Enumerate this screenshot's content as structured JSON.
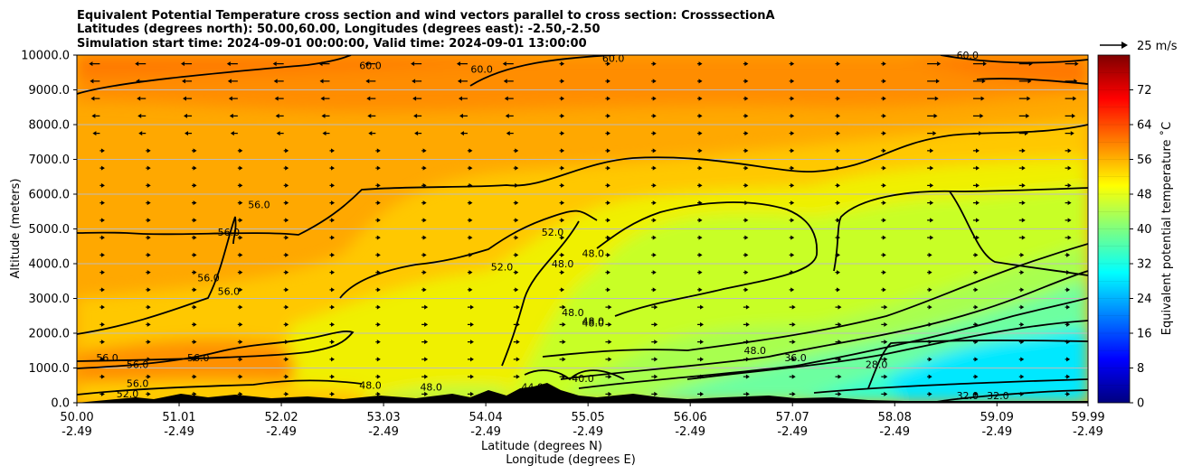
{
  "chart_data": {
    "type": "contourf",
    "title": [
      "Equivalent Potential Temperature cross section and wind vectors parallel to cross section: CrosssectionA",
      "Latitudes (degrees north): 50.00,60.00, Longitudes (degrees east): -2.50,-2.50",
      "Simulation start time: 2024-09-01 00:00:00, Valid time: 2024-09-01 13:00:00"
    ],
    "xlabel": "Latitude (degrees N)",
    "xlabel2": "Longitude (degrees E)",
    "ylabel": "Altitude (meters)",
    "xlim": [
      50.0,
      59.99
    ],
    "ylim": [
      0,
      10000
    ],
    "x_ticks": [
      {
        "lat": "50.00",
        "lon": "-2.49",
        "v": 50.0
      },
      {
        "lat": "51.01",
        "lon": "-2.49",
        "v": 51.01
      },
      {
        "lat": "52.02",
        "lon": "-2.49",
        "v": 52.02
      },
      {
        "lat": "53.03",
        "lon": "-2.49",
        "v": 53.03
      },
      {
        "lat": "54.04",
        "lon": "-2.49",
        "v": 54.04
      },
      {
        "lat": "55.05",
        "lon": "-2.49",
        "v": 55.05
      },
      {
        "lat": "56.06",
        "lon": "-2.49",
        "v": 56.06
      },
      {
        "lat": "57.07",
        "lon": "-2.49",
        "v": 57.07
      },
      {
        "lat": "58.08",
        "lon": "-2.49",
        "v": 58.08
      },
      {
        "lat": "59.09",
        "lon": "-2.49",
        "v": 59.09
      },
      {
        "lat": "59.99",
        "lon": "-2.49",
        "v": 59.99
      }
    ],
    "y_ticks": [
      {
        "label": "0.0",
        "v": 0
      },
      {
        "label": "1000.0",
        "v": 1000
      },
      {
        "label": "2000.0",
        "v": 2000
      },
      {
        "label": "3000.0",
        "v": 3000
      },
      {
        "label": "4000.0",
        "v": 4000
      },
      {
        "label": "5000.0",
        "v": 5000
      },
      {
        "label": "6000.0",
        "v": 6000
      },
      {
        "label": "7000.0",
        "v": 7000
      },
      {
        "label": "8000.0",
        "v": 8000
      },
      {
        "label": "9000.0",
        "v": 9000
      },
      {
        "label": "10000.0",
        "v": 10000
      }
    ],
    "colorbar": {
      "label": "Equivalent potential temperature $^\\circ$C",
      "label_text": "Equivalent potential temperature ˚C",
      "range": [
        0,
        80
      ],
      "ticks": [
        {
          "label": "0",
          "v": 0
        },
        {
          "label": "8",
          "v": 8
        },
        {
          "label": "16",
          "v": 16
        },
        {
          "label": "24",
          "v": 24
        },
        {
          "label": "32",
          "v": 32
        },
        {
          "label": "40",
          "v": 40
        },
        {
          "label": "48",
          "v": 48
        },
        {
          "label": "56",
          "v": 56
        },
        {
          "label": "64",
          "v": 64
        },
        {
          "label": "72",
          "v": 72
        }
      ],
      "stops": [
        "#00007f",
        "#0000ff",
        "#007fff",
        "#00ffff",
        "#7fff7f",
        "#ffff00",
        "#ff7f00",
        "#ff0000",
        "#7f0000"
      ]
    },
    "quiver_key": "25 m/s",
    "contour_labels": [
      {
        "t": "60.0",
        "x": 52.9,
        "y": 9600
      },
      {
        "t": "60.0",
        "x": 54.0,
        "y": 9500
      },
      {
        "t": "60.0",
        "x": 55.3,
        "y": 9800
      },
      {
        "t": "60.0",
        "x": 58.8,
        "y": 9900
      },
      {
        "t": "56.0",
        "x": 51.8,
        "y": 5600
      },
      {
        "t": "56.0",
        "x": 51.5,
        "y": 4800
      },
      {
        "t": "56.0",
        "x": 51.3,
        "y": 3500
      },
      {
        "t": "56.0",
        "x": 51.5,
        "y": 3100
      },
      {
        "t": "56.0",
        "x": 50.6,
        "y": 1000
      },
      {
        "t": "56.0",
        "x": 51.2,
        "y": 1200
      },
      {
        "t": "56.0",
        "x": 50.3,
        "y": 1200
      },
      {
        "t": "56.0",
        "x": 50.6,
        "y": 450
      },
      {
        "t": "52.0",
        "x": 50.5,
        "y": 150
      },
      {
        "t": "52.0",
        "x": 54.7,
        "y": 4800
      },
      {
        "t": "52.0",
        "x": 54.2,
        "y": 3800
      },
      {
        "t": "48.0",
        "x": 54.8,
        "y": 3900
      },
      {
        "t": "48.0",
        "x": 55.1,
        "y": 4200
      },
      {
        "t": "48.0",
        "x": 54.9,
        "y": 2500
      },
      {
        "t": "48.0",
        "x": 55.1,
        "y": 2250
      },
      {
        "t": "48.0",
        "x": 55.1,
        "y": 2200
      },
      {
        "t": "48.0",
        "x": 56.7,
        "y": 1400
      },
      {
        "t": "48.0",
        "x": 52.9,
        "y": 400
      },
      {
        "t": "48.0",
        "x": 53.5,
        "y": 350
      },
      {
        "t": "44.0",
        "x": 54.5,
        "y": 350
      },
      {
        "t": "40.0",
        "x": 55.0,
        "y": 600
      },
      {
        "t": "36.0",
        "x": 57.1,
        "y": 1200
      },
      {
        "t": "28.0",
        "x": 57.9,
        "y": 1000
      },
      {
        "t": "32.0",
        "x": 58.8,
        "y": 100
      },
      {
        "t": "32.0",
        "x": 59.1,
        "y": 100
      }
    ]
  }
}
